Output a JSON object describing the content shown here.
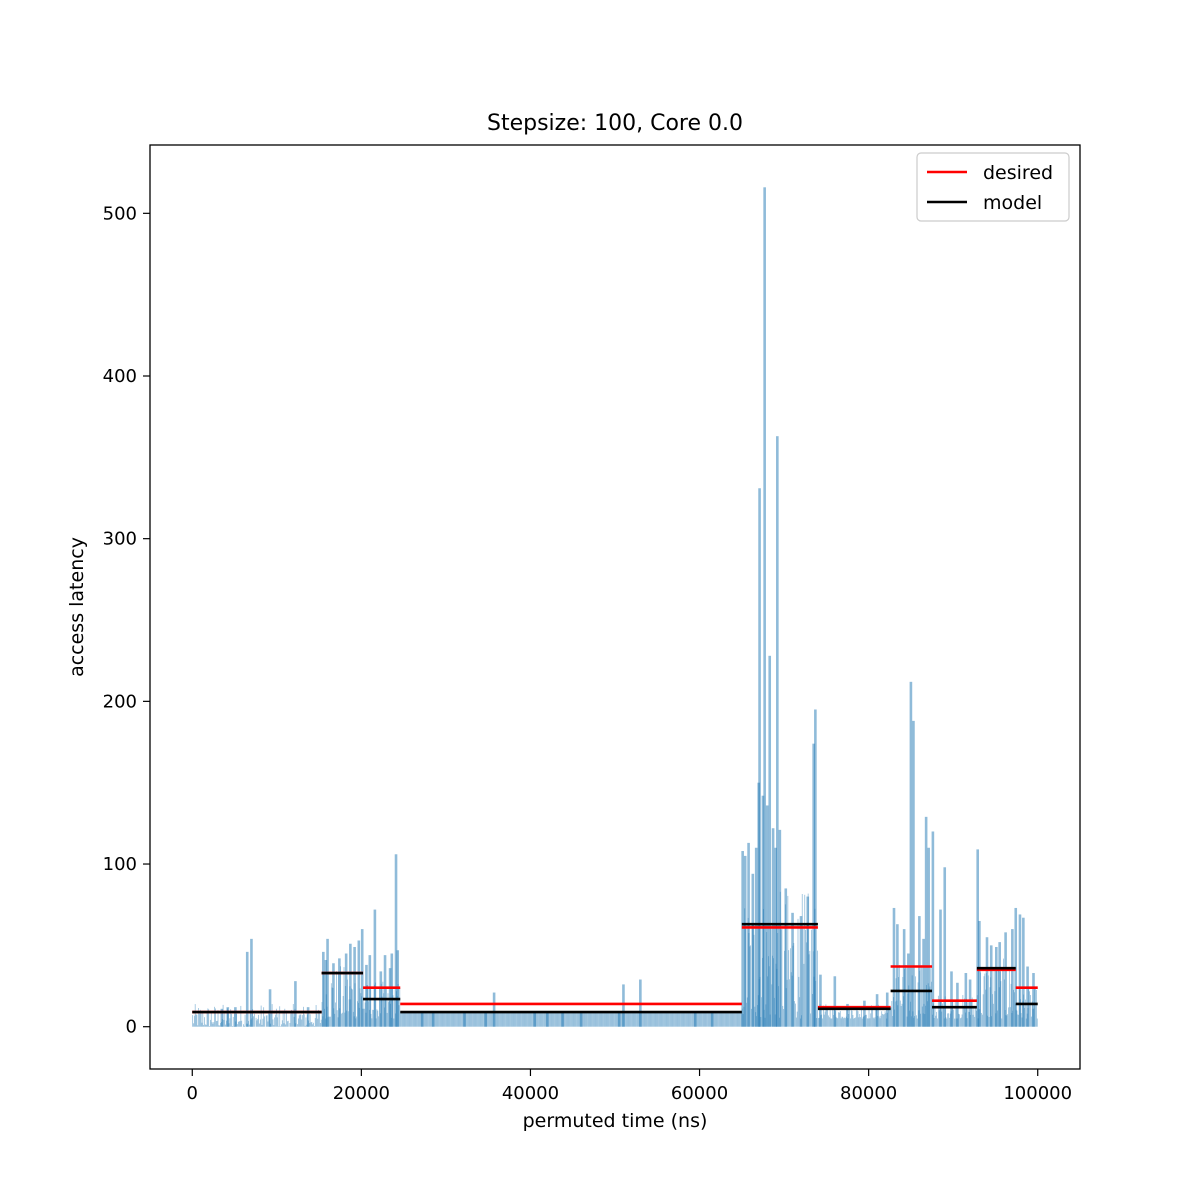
{
  "chart_data": {
    "type": "bar",
    "title": "Stepsize: 100, Core 0.0",
    "xlabel": "permuted time (ns)",
    "ylabel": "access latency",
    "xlim": [
      -5000,
      105000
    ],
    "ylim": [
      -26,
      542
    ],
    "x_ticks": [
      0,
      20000,
      40000,
      60000,
      80000,
      100000
    ],
    "y_ticks": [
      0,
      100,
      200,
      300,
      400,
      500
    ],
    "grid": false,
    "legend_position": "top-right",
    "bar_color": "#1f77b4",
    "bar_opacity": 0.5,
    "baseline": 9,
    "bar_regions": [
      {
        "start": 0,
        "end": 15300,
        "low": 0,
        "high": 14
      },
      {
        "start": 15300,
        "end": 20200,
        "low": 5,
        "high": 38
      },
      {
        "start": 20200,
        "end": 24600,
        "low": 5,
        "high": 28
      },
      {
        "start": 65000,
        "end": 74000,
        "low": 5,
        "high": 84
      },
      {
        "start": 74000,
        "end": 82600,
        "low": 5,
        "high": 14
      },
      {
        "start": 82600,
        "end": 87500,
        "low": 5,
        "high": 40
      },
      {
        "start": 87500,
        "end": 92800,
        "low": 5,
        "high": 20
      },
      {
        "start": 92800,
        "end": 97400,
        "low": 5,
        "high": 42
      },
      {
        "start": 97400,
        "end": 100000,
        "low": 5,
        "high": 25
      }
    ],
    "spikes": [
      {
        "x": 3500,
        "y": 11
      },
      {
        "x": 4200,
        "y": 12
      },
      {
        "x": 5100,
        "y": 12
      },
      {
        "x": 6500,
        "y": 46
      },
      {
        "x": 7000,
        "y": 54
      },
      {
        "x": 9200,
        "y": 23
      },
      {
        "x": 12200,
        "y": 28
      },
      {
        "x": 13700,
        "y": 12
      },
      {
        "x": 15500,
        "y": 46
      },
      {
        "x": 15800,
        "y": 41
      },
      {
        "x": 16000,
        "y": 54
      },
      {
        "x": 16700,
        "y": 39
      },
      {
        "x": 17400,
        "y": 42
      },
      {
        "x": 18200,
        "y": 45
      },
      {
        "x": 18700,
        "y": 51
      },
      {
        "x": 19200,
        "y": 49
      },
      {
        "x": 19700,
        "y": 53
      },
      {
        "x": 20100,
        "y": 60
      },
      {
        "x": 20600,
        "y": 38
      },
      {
        "x": 21000,
        "y": 44
      },
      {
        "x": 21600,
        "y": 72
      },
      {
        "x": 22300,
        "y": 34
      },
      {
        "x": 22800,
        "y": 44
      },
      {
        "x": 23400,
        "y": 36
      },
      {
        "x": 23600,
        "y": 45
      },
      {
        "x": 24100,
        "y": 106
      },
      {
        "x": 24300,
        "y": 47
      },
      {
        "x": 27200,
        "y": 9
      },
      {
        "x": 28500,
        "y": 9
      },
      {
        "x": 32200,
        "y": 9
      },
      {
        "x": 34700,
        "y": 9
      },
      {
        "x": 35700,
        "y": 21
      },
      {
        "x": 40500,
        "y": 9
      },
      {
        "x": 42000,
        "y": 9
      },
      {
        "x": 43800,
        "y": 9
      },
      {
        "x": 46000,
        "y": 9
      },
      {
        "x": 50500,
        "y": 9
      },
      {
        "x": 51000,
        "y": 26
      },
      {
        "x": 53000,
        "y": 29
      },
      {
        "x": 59500,
        "y": 9
      },
      {
        "x": 61500,
        "y": 9
      },
      {
        "x": 65100,
        "y": 108
      },
      {
        "x": 65400,
        "y": 105
      },
      {
        "x": 65800,
        "y": 113
      },
      {
        "x": 66300,
        "y": 94
      },
      {
        "x": 66700,
        "y": 110
      },
      {
        "x": 67000,
        "y": 150
      },
      {
        "x": 67100,
        "y": 331
      },
      {
        "x": 67500,
        "y": 142
      },
      {
        "x": 67700,
        "y": 516
      },
      {
        "x": 68000,
        "y": 136
      },
      {
        "x": 68300,
        "y": 228
      },
      {
        "x": 68700,
        "y": 122
      },
      {
        "x": 69000,
        "y": 110
      },
      {
        "x": 69200,
        "y": 363
      },
      {
        "x": 69500,
        "y": 121
      },
      {
        "x": 70200,
        "y": 85
      },
      {
        "x": 71000,
        "y": 70
      },
      {
        "x": 72000,
        "y": 68
      },
      {
        "x": 72800,
        "y": 80
      },
      {
        "x": 73500,
        "y": 174
      },
      {
        "x": 73700,
        "y": 195
      },
      {
        "x": 74300,
        "y": 32
      },
      {
        "x": 76000,
        "y": 31
      },
      {
        "x": 77500,
        "y": 14
      },
      {
        "x": 79500,
        "y": 16
      },
      {
        "x": 81000,
        "y": 20
      },
      {
        "x": 82200,
        "y": 21
      },
      {
        "x": 83000,
        "y": 73
      },
      {
        "x": 83400,
        "y": 63
      },
      {
        "x": 84200,
        "y": 60
      },
      {
        "x": 84700,
        "y": 45
      },
      {
        "x": 85000,
        "y": 212
      },
      {
        "x": 85300,
        "y": 188
      },
      {
        "x": 86000,
        "y": 68
      },
      {
        "x": 86500,
        "y": 54
      },
      {
        "x": 86800,
        "y": 129
      },
      {
        "x": 87100,
        "y": 110
      },
      {
        "x": 87600,
        "y": 120
      },
      {
        "x": 88500,
        "y": 72
      },
      {
        "x": 89000,
        "y": 98
      },
      {
        "x": 89800,
        "y": 34
      },
      {
        "x": 90500,
        "y": 27
      },
      {
        "x": 91500,
        "y": 33
      },
      {
        "x": 92000,
        "y": 29
      },
      {
        "x": 92900,
        "y": 109
      },
      {
        "x": 93100,
        "y": 65
      },
      {
        "x": 94000,
        "y": 55
      },
      {
        "x": 94500,
        "y": 50
      },
      {
        "x": 95100,
        "y": 49
      },
      {
        "x": 95500,
        "y": 52
      },
      {
        "x": 96200,
        "y": 58
      },
      {
        "x": 97000,
        "y": 60
      },
      {
        "x": 97400,
        "y": 73
      },
      {
        "x": 97900,
        "y": 69
      },
      {
        "x": 98300,
        "y": 67
      },
      {
        "x": 98800,
        "y": 37
      },
      {
        "x": 99500,
        "y": 33
      }
    ],
    "desired": [
      {
        "start": 0,
        "end": 15300,
        "y": 9
      },
      {
        "start": 15300,
        "end": 20200,
        "y": 33
      },
      {
        "start": 20200,
        "end": 24600,
        "y": 24
      },
      {
        "start": 24600,
        "end": 65000,
        "y": 14
      },
      {
        "start": 65000,
        "end": 74000,
        "y": 61
      },
      {
        "start": 74000,
        "end": 82600,
        "y": 12
      },
      {
        "start": 82600,
        "end": 87500,
        "y": 37
      },
      {
        "start": 87500,
        "end": 92800,
        "y": 16
      },
      {
        "start": 92800,
        "end": 97400,
        "y": 35
      },
      {
        "start": 97400,
        "end": 100000,
        "y": 24
      }
    ],
    "model": [
      {
        "start": 0,
        "end": 15300,
        "y": 9
      },
      {
        "start": 15300,
        "end": 20200,
        "y": 33
      },
      {
        "start": 20200,
        "end": 24600,
        "y": 17
      },
      {
        "start": 24600,
        "end": 65000,
        "y": 9
      },
      {
        "start": 65000,
        "end": 74000,
        "y": 63
      },
      {
        "start": 74000,
        "end": 82600,
        "y": 11
      },
      {
        "start": 82600,
        "end": 87500,
        "y": 22
      },
      {
        "start": 87500,
        "end": 92800,
        "y": 12
      },
      {
        "start": 92800,
        "end": 97400,
        "y": 36
      },
      {
        "start": 97400,
        "end": 100000,
        "y": 14
      }
    ],
    "legend": [
      {
        "label": "desired",
        "color": "#ff0000"
      },
      {
        "label": "model",
        "color": "#000000"
      }
    ]
  }
}
